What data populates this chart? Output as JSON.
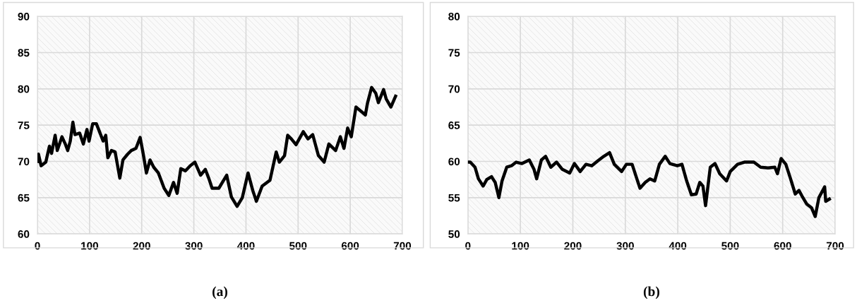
{
  "chart_data": [
    {
      "type": "line",
      "annotations": [
        "(a)"
      ],
      "xlim": [
        0,
        700
      ],
      "xticks": [
        0,
        100,
        200,
        300,
        400,
        500,
        600,
        700
      ],
      "ylim": [
        60,
        90
      ],
      "yticks": [
        60,
        65,
        70,
        75,
        80,
        85,
        90
      ],
      "grid": true,
      "legend": false,
      "marker": "none",
      "line_style": "solid",
      "series": [
        {
          "color": "#000000",
          "x": [
            0,
            2,
            7,
            16,
            23,
            27,
            34,
            38,
            47,
            54,
            58,
            63,
            68,
            72,
            81,
            88,
            95,
            99,
            106,
            113,
            119,
            126,
            131,
            135,
            142,
            149,
            158,
            164,
            173,
            180,
            189,
            197,
            203,
            209,
            216,
            223,
            232,
            243,
            252,
            261,
            268,
            275,
            284,
            293,
            302,
            313,
            322,
            329,
            335,
            348,
            363,
            372,
            383,
            393,
            404,
            413,
            420,
            431,
            446,
            458,
            464,
            474,
            480,
            487,
            496,
            510,
            519,
            528,
            539,
            550,
            559,
            572,
            581,
            588,
            595,
            602,
            611,
            629,
            633,
            641,
            649,
            654,
            664,
            669,
            678,
            687
          ],
          "values": [
            70,
            71,
            69.4,
            69.9,
            72.1,
            71.1,
            73.6,
            71.5,
            73.4,
            72.3,
            71.5,
            72.8,
            75.4,
            73.7,
            73.9,
            72.4,
            74.4,
            72.8,
            75.2,
            75.2,
            74.1,
            72.8,
            73.6,
            70.5,
            71.5,
            71.3,
            67.7,
            70.2,
            71,
            71.5,
            71.8,
            73.3,
            71,
            68.4,
            70.2,
            69.2,
            68.4,
            66.3,
            65.3,
            67.1,
            65.6,
            69,
            68.7,
            69.4,
            69.9,
            68.1,
            68.9,
            67.6,
            66.3,
            66.3,
            68.1,
            65.1,
            63.8,
            65,
            68.4,
            66,
            64.5,
            66.6,
            67.4,
            71.3,
            69.9,
            70.8,
            73.6,
            73.1,
            72.3,
            74.1,
            73.1,
            73.7,
            70.8,
            69.9,
            72.4,
            71.5,
            73.4,
            71.8,
            74.6,
            73.4,
            77.5,
            76.4,
            78,
            80.2,
            79.4,
            78.1,
            79.9,
            78.6,
            77.5,
            79
          ]
        }
      ]
    },
    {
      "type": "line",
      "annotations": [
        "(b)"
      ],
      "xlim": [
        0,
        700
      ],
      "xticks": [
        0,
        100,
        200,
        300,
        400,
        500,
        600,
        700
      ],
      "ylim": [
        50,
        80
      ],
      "yticks": [
        50,
        55,
        60,
        65,
        70,
        75,
        80
      ],
      "grid": true,
      "legend": false,
      "marker": "none",
      "line_style": "solid",
      "series": [
        {
          "color": "#000000",
          "x": [
            0,
            4.5,
            13.5,
            20,
            29,
            36,
            45,
            52,
            59,
            65,
            74,
            83,
            92,
            103,
            117,
            126,
            131,
            140,
            148,
            158,
            169,
            180,
            194,
            203,
            214,
            225,
            236,
            248,
            259,
            270,
            279,
            293,
            302,
            313,
            322,
            328,
            338,
            347,
            356,
            365,
            376,
            385,
            399,
            408,
            417,
            426,
            435,
            442,
            448,
            453,
            462,
            471,
            480,
            493,
            500,
            514,
            527,
            545,
            558,
            572,
            585,
            590,
            597,
            606,
            615,
            624,
            631,
            637,
            646,
            655,
            662,
            669,
            680,
            682,
            689
          ],
          "values": [
            59.9,
            59.9,
            59.2,
            57.6,
            56.6,
            57.5,
            57.9,
            57.1,
            55,
            57.3,
            59.2,
            59.4,
            59.9,
            59.7,
            60.2,
            58.9,
            57.6,
            60.2,
            60.7,
            59.2,
            59.9,
            58.9,
            58.4,
            59.7,
            58.6,
            59.6,
            59.4,
            60.1,
            60.7,
            61.2,
            59.6,
            58.6,
            59.6,
            59.6,
            57.6,
            56.3,
            57.1,
            57.6,
            57.3,
            59.6,
            60.7,
            59.7,
            59.4,
            59.6,
            57.3,
            55.4,
            55.5,
            57.1,
            56.6,
            53.9,
            59.2,
            59.7,
            58.3,
            57.3,
            58.6,
            59.6,
            59.9,
            59.9,
            59.2,
            59.1,
            59.2,
            58.3,
            60.4,
            59.6,
            57.6,
            55.5,
            56,
            55.2,
            54.1,
            53.6,
            52.4,
            55,
            56.5,
            54.5,
            54.8
          ]
        }
      ]
    }
  ]
}
